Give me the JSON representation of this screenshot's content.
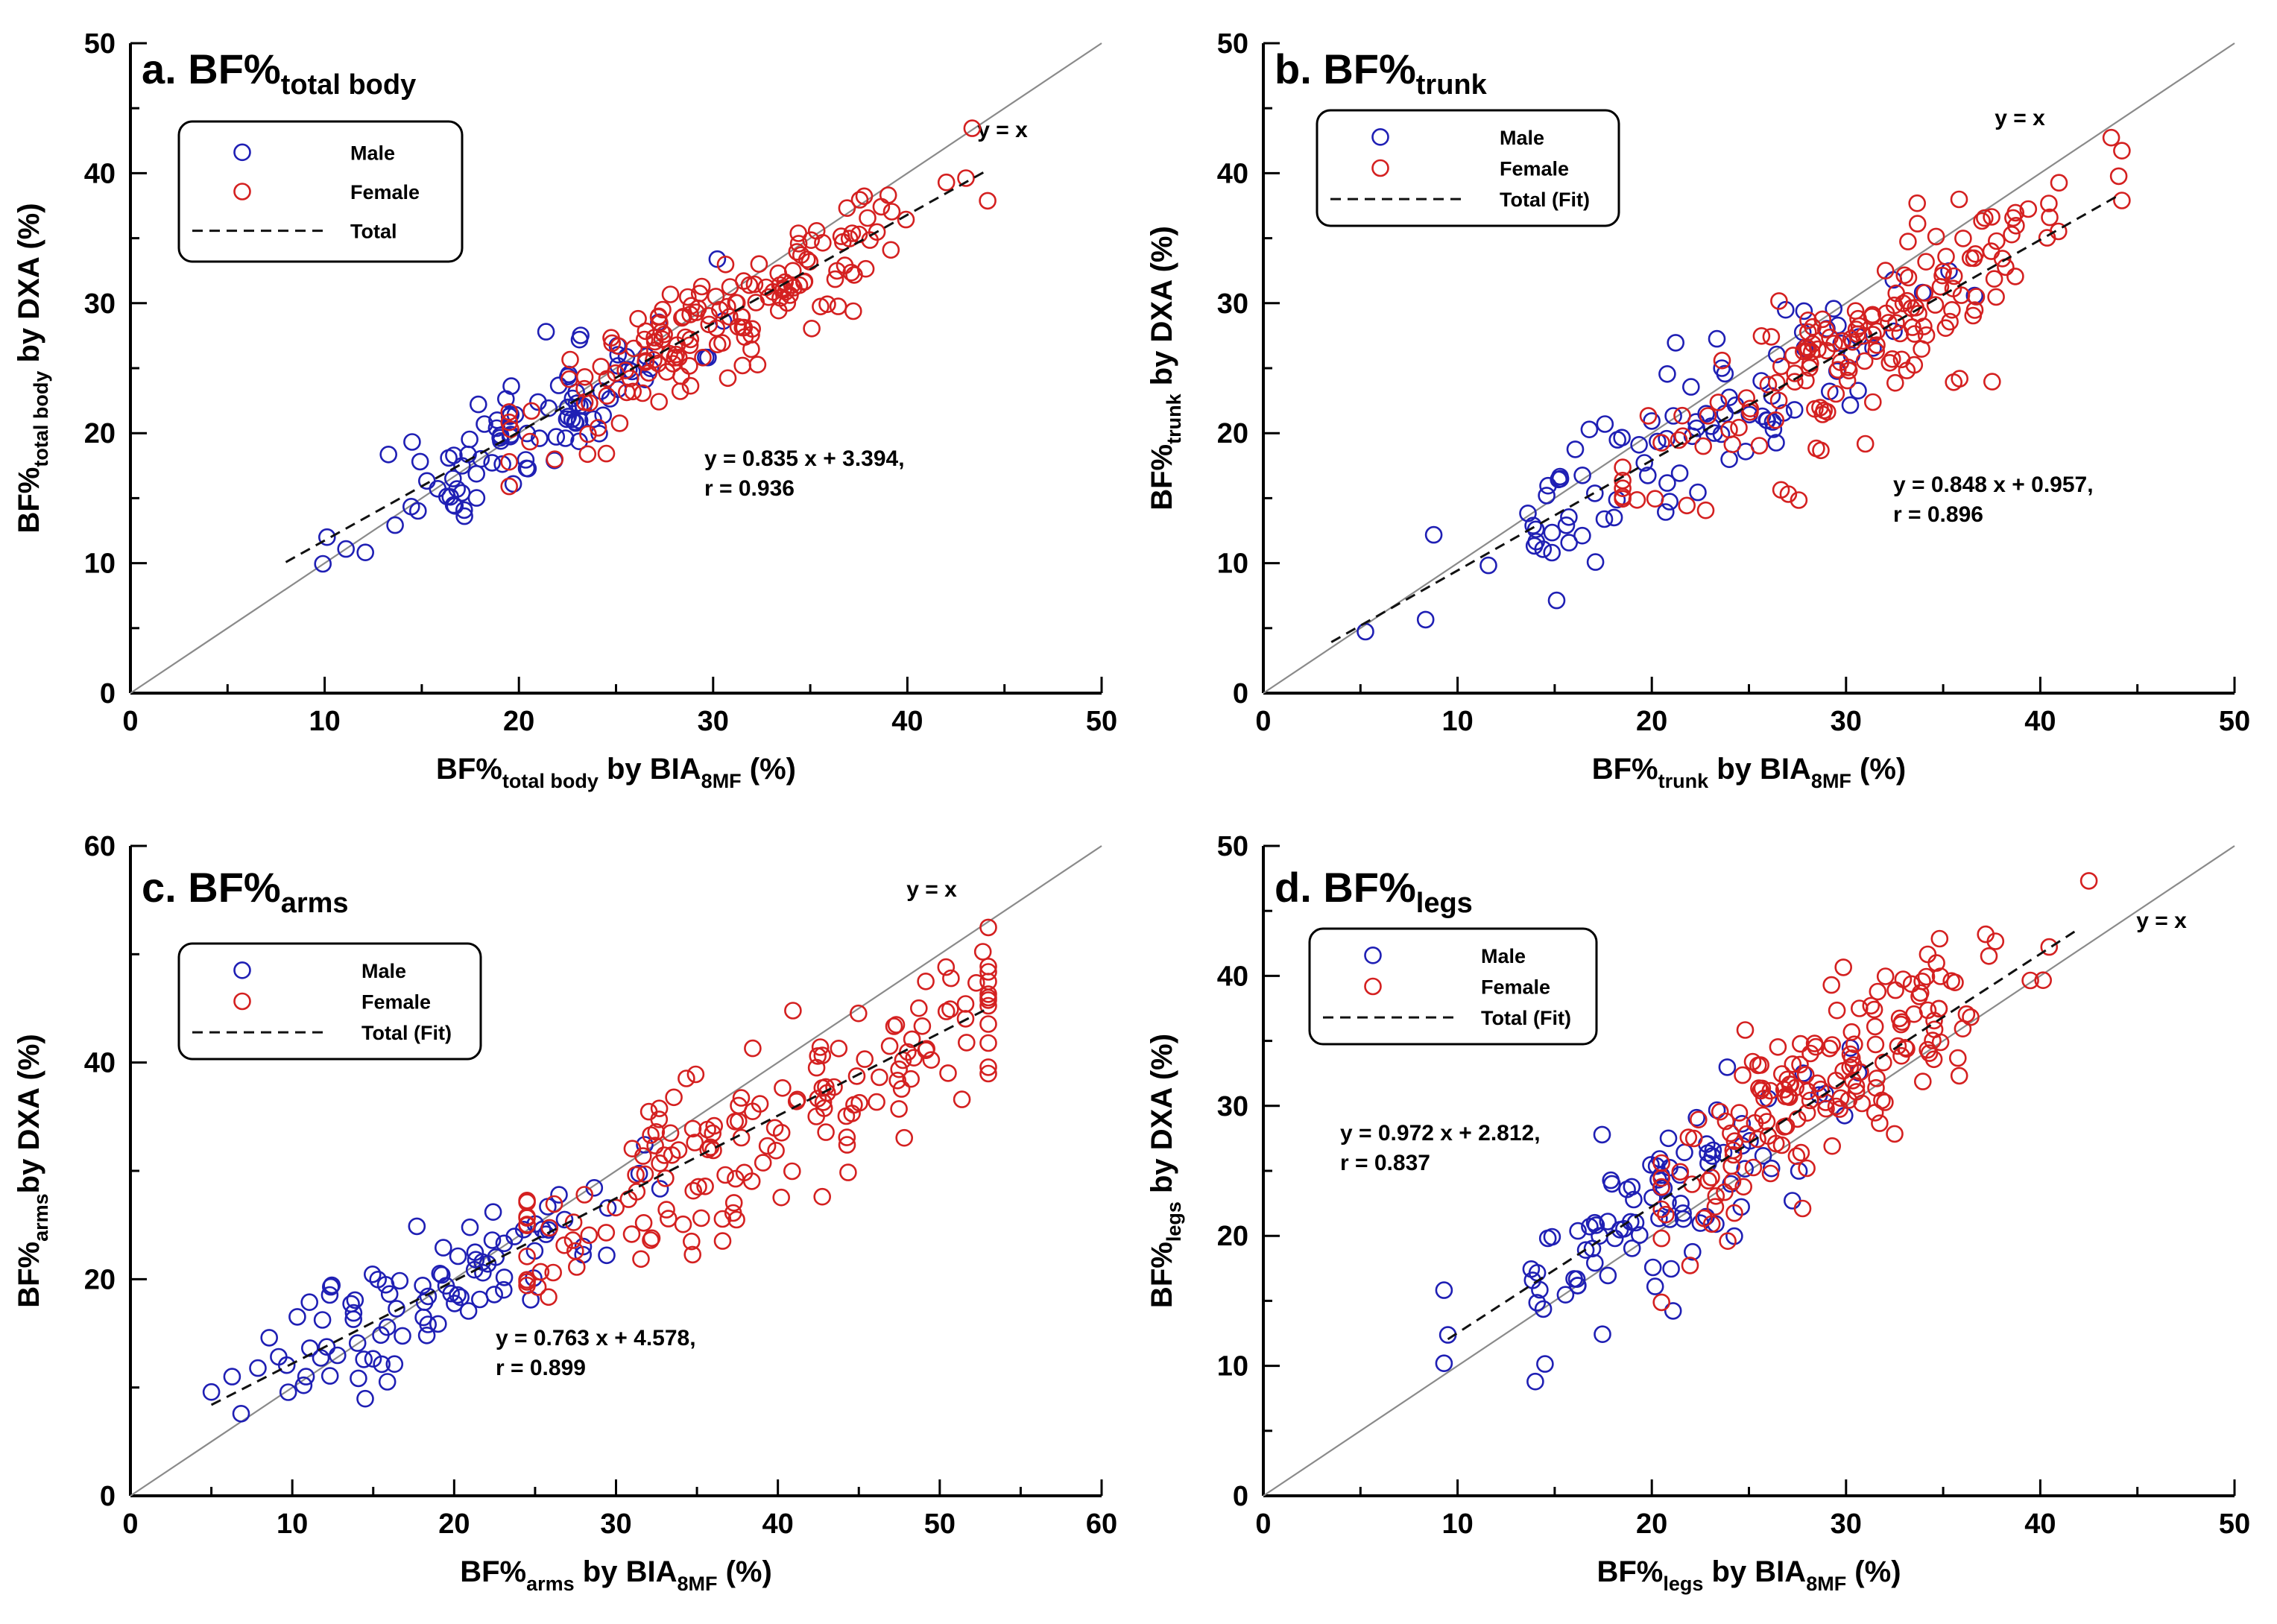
{
  "chart_data": [
    {
      "type": "scatter",
      "panel_letter": "a.",
      "title_main": "BF%",
      "title_sub": "total body",
      "xlabel": {
        "pre": "BF%",
        "sub1": "total body",
        "mid": " by BIA",
        "sub2": "8MF",
        "post": " (%)"
      },
      "ylabel": {
        "pre": "BF%",
        "sub1": "total body",
        "post": " by DXA (%)"
      },
      "xlim": [
        0,
        50
      ],
      "ylim": [
        0,
        50
      ],
      "xticks": [
        0,
        10,
        20,
        30,
        40,
        50
      ],
      "yticks": [
        0,
        10,
        20,
        30,
        40,
        50
      ],
      "identity_label": "y = x",
      "legend": {
        "male": "Male",
        "female": "Female",
        "fit": "Total",
        "placement": "upper-left"
      },
      "equation": "y = 0.835 x + 3.394,",
      "r_text": "r = 0.936",
      "fit": {
        "slope": 0.835,
        "intercept": 3.394,
        "x_range": [
          8,
          44
        ]
      },
      "colors": {
        "male": "#1f1fb4",
        "female": "#d42020"
      },
      "n_male": 95,
      "n_female": 165
    },
    {
      "type": "scatter",
      "panel_letter": "b.",
      "title_main": "BF%",
      "title_sub": "trunk",
      "xlabel": {
        "pre": "BF%",
        "sub1": "trunk",
        "mid": " by BIA",
        "sub2": "8MF",
        "post": " (%)"
      },
      "ylabel": {
        "pre": "BF%",
        "sub1": "trunk",
        "post": " by DXA (%)"
      },
      "xlim": [
        0,
        50
      ],
      "ylim": [
        0,
        50
      ],
      "xticks": [
        0,
        10,
        20,
        30,
        40,
        50
      ],
      "yticks": [
        0,
        10,
        20,
        30,
        40,
        50
      ],
      "identity_label": "y = x",
      "legend": {
        "male": "Male",
        "female": "Female",
        "fit": "Total (Fit)",
        "placement": "upper-left"
      },
      "equation": "y = 0.848 x + 0.957,",
      "r_text": "r = 0.896",
      "fit": {
        "slope": 0.848,
        "intercept": 0.957,
        "x_range": [
          3.5,
          44
        ]
      },
      "colors": {
        "male": "#1f1fb4",
        "female": "#d42020"
      },
      "n_male": 95,
      "n_female": 165
    },
    {
      "type": "scatter",
      "panel_letter": "c.",
      "title_main": "BF%",
      "title_sub": "arms",
      "xlabel": {
        "pre": "BF%",
        "sub1": "arms",
        "mid": " by BIA",
        "sub2": "8MF",
        "post": " (%)"
      },
      "ylabel": {
        "pre": "BF%",
        "sub1": "arms",
        "post": "by DXA (%)"
      },
      "xlim": [
        0,
        60
      ],
      "ylim": [
        0,
        60
      ],
      "xticks": [
        0,
        10,
        20,
        30,
        40,
        50,
        60
      ],
      "yticks": [
        0,
        20,
        40,
        60
      ],
      "identity_label": "y = x",
      "legend": {
        "male": "Male",
        "female": "Female",
        "fit": "Total (Fit)",
        "placement": "upper-left"
      },
      "equation": "y = 0.763 x + 4.578,",
      "r_text": "r = 0.899",
      "fit": {
        "slope": 0.763,
        "intercept": 4.578,
        "x_range": [
          5,
          53
        ]
      },
      "colors": {
        "male": "#1f1fb4",
        "female": "#d42020"
      },
      "n_male": 95,
      "n_female": 165
    },
    {
      "type": "scatter",
      "panel_letter": "d.",
      "title_main": "BF%",
      "title_sub": "legs",
      "xlabel": {
        "pre": "BF%",
        "sub1": "legs",
        "mid": " by BIA",
        "sub2": "8MF",
        "post": " (%)"
      },
      "ylabel": {
        "pre": "BF%",
        "sub1": "legs",
        "post": " by DXA (%)"
      },
      "xlim": [
        0,
        50
      ],
      "ylim": [
        0,
        50
      ],
      "xticks": [
        0,
        10,
        20,
        30,
        40,
        50
      ],
      "yticks": [
        0,
        10,
        20,
        30,
        40,
        50
      ],
      "identity_label": "y = x",
      "legend": {
        "male": "Male",
        "female": "Female",
        "fit": "Total (Fit)",
        "placement": "upper-left"
      },
      "equation": "y = 0.972 x + 2.812,",
      "r_text": "r = 0.837",
      "fit": {
        "slope": 0.972,
        "intercept": 2.812,
        "x_range": [
          9.5,
          42
        ]
      },
      "colors": {
        "male": "#1f1fb4",
        "female": "#d42020"
      },
      "n_male": 95,
      "n_female": 165
    }
  ]
}
